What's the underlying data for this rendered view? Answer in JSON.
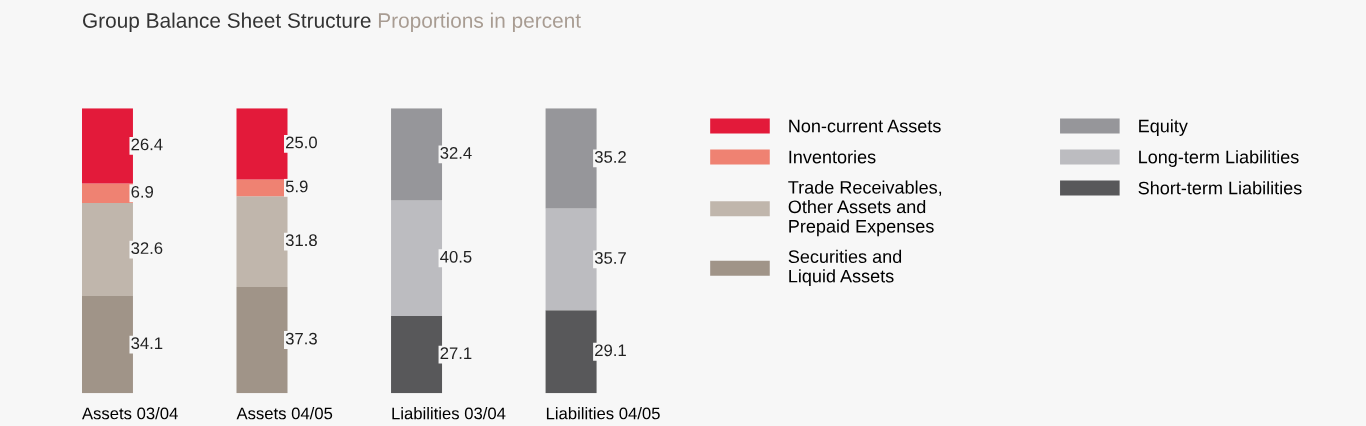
{
  "chart_data": {
    "type": "bar",
    "title": "Group Balance Sheet Structure",
    "subtitle": "Proportions in percent",
    "categories": [
      "Assets 03/04",
      "Assets 04/05",
      "Liabilities 03/04",
      "Liabilities 04/05"
    ],
    "stacked": true,
    "data_labels": true,
    "legend": "right",
    "grid": false,
    "tick_labels": "x",
    "series": [
      {
        "name": "Securities and\nLiquid Assets",
        "color": "#a09488",
        "values": [
          34.1,
          37.3,
          null,
          null
        ]
      },
      {
        "name": "Trade Receivables,\nOther Assets and\nPrepaid Expenses",
        "color": "#c0b6ac",
        "values": [
          32.6,
          31.8,
          null,
          null
        ]
      },
      {
        "name": "Inventories",
        "color": "#ef8272",
        "values": [
          6.9,
          5.9,
          null,
          null
        ]
      },
      {
        "name": "Non-current Assets",
        "color": "#e31a3a",
        "values": [
          26.4,
          25.0,
          null,
          null
        ],
        "value_labels": [
          "26.4",
          "25.0",
          null,
          null
        ]
      },
      {
        "name": "Short-term Liabilities",
        "color": "#58585a",
        "values": [
          null,
          null,
          27.1,
          29.1
        ]
      },
      {
        "name": "Long-term Liabilities",
        "color": "#bcbcc0",
        "values": [
          null,
          null,
          40.5,
          35.7
        ]
      },
      {
        "name": "Equity",
        "color": "#96969a",
        "values": [
          null,
          null,
          32.4,
          35.2
        ]
      }
    ]
  }
}
